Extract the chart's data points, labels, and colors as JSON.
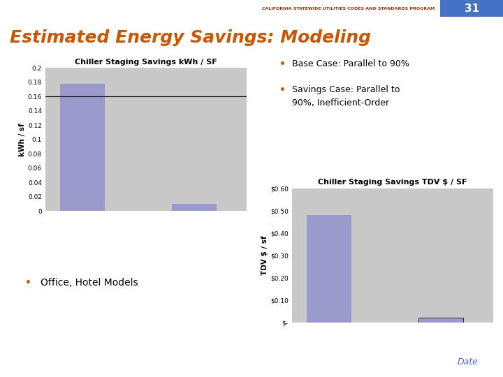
{
  "title": "Estimated Energy Savings: Modeling",
  "header_text": "CALIFORNIA STATEWIDE UTILITIES CODES AND STANDARDS PROGRAM",
  "slide_number": "31",
  "background_color": "#ffffff",
  "chart1": {
    "title": "Chiller Staging Savings kWh / SF",
    "ylabel": "kWh / sf",
    "bar_values": [
      0.178,
      0.01
    ],
    "bar_color": "#9999cc",
    "bg_color": "#c8c8c8",
    "ylim": [
      0,
      0.2
    ],
    "yticks": [
      0,
      0.02,
      0.04,
      0.06,
      0.08,
      0.1,
      0.12,
      0.14,
      0.16,
      0.18,
      0.2
    ],
    "ytick_labels": [
      "0",
      "0.02",
      "0.04",
      "0.06",
      "0.08",
      "0.1",
      "0.12",
      "0.14",
      "0.16",
      "0.18",
      "0.2"
    ],
    "hline_y": 0.16,
    "hline_color": "#000000"
  },
  "chart2": {
    "title": "Chiller Staging Savings TDV $ / SF",
    "ylabel": "TDV $ / sf",
    "bar_values": [
      0.48,
      0.02
    ],
    "bar_color": "#9999cc",
    "bg_color": "#c8c8c8",
    "ylim": [
      0,
      0.6
    ],
    "ytick_labels": [
      "$-",
      "$0.10",
      "$0.20",
      "$0.30",
      "$0.40",
      "$0.50",
      "$0.60"
    ],
    "ytick_values": [
      0,
      0.1,
      0.2,
      0.3,
      0.4,
      0.5,
      0.6
    ]
  },
  "bullet1": "Base Case: Parallel to 90%",
  "bullet2_line1": "Savings Case: Parallel to",
  "bullet2_line2": "90%, Inefficient-Order",
  "bullet3": "Office, Hotel Models",
  "bullet_color": "#cc5500",
  "title_color": "#cc5500",
  "header_color": "#993300",
  "slide_num_bg": "#4472c4",
  "accent_line_color": "#4472c4",
  "footer_line_color": "#4472c4",
  "date_text": "Date",
  "date_color": "#4472c4",
  "text_color": "#000000"
}
